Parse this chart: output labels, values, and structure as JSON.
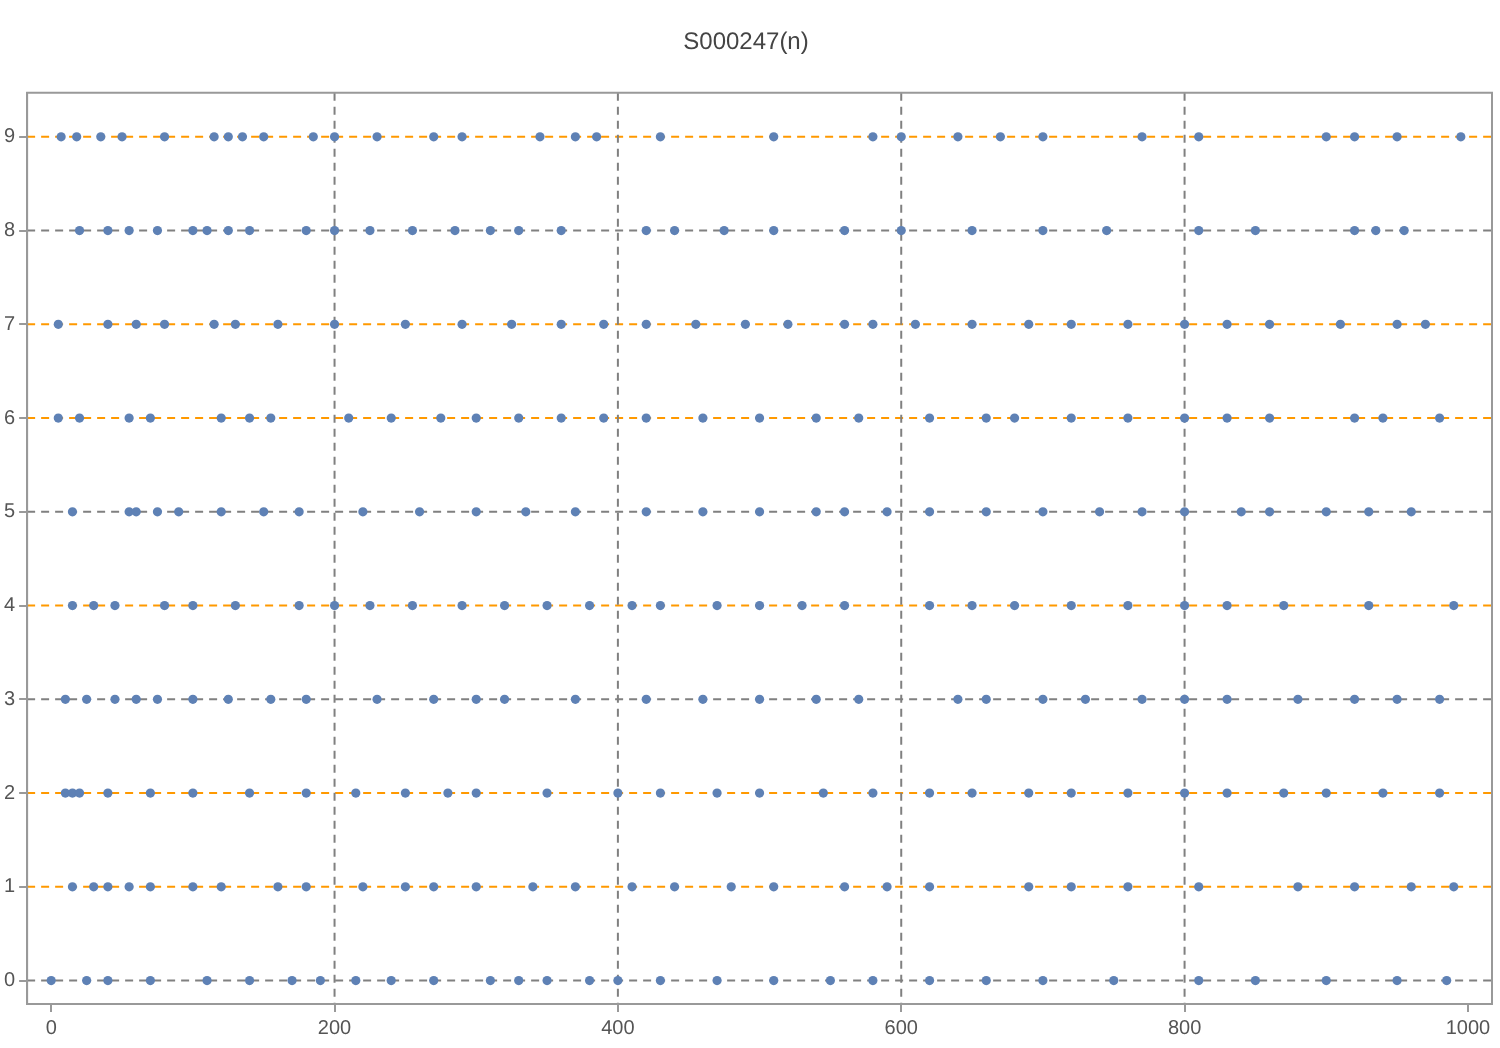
{
  "chart_data": {
    "type": "scatter",
    "title": "S000247(n)",
    "marker": "circle",
    "legend": false,
    "grid": false,
    "xlim": [
      -17,
      1017
    ],
    "ylim": [
      -0.25,
      9.47
    ],
    "xticks": [
      0,
      200,
      400,
      600,
      800,
      1000
    ],
    "yticks": [
      0,
      1,
      2,
      3,
      4,
      5,
      6,
      7,
      8,
      9
    ],
    "series": [
      {
        "color": "#5e81b5",
        "x": [
          7,
          18,
          35,
          50,
          80,
          115,
          125,
          135,
          150,
          185,
          200,
          230,
          270,
          290,
          345,
          370,
          385,
          430,
          510,
          580,
          600,
          640,
          670,
          700,
          770,
          810,
          900,
          920,
          950,
          995
        ],
        "values": [
          9,
          9,
          9,
          9,
          9,
          9,
          9,
          9,
          9,
          9,
          9,
          9,
          9,
          9,
          9,
          9,
          9,
          9,
          9,
          9,
          9,
          9,
          9,
          9,
          9,
          9,
          9,
          9,
          9,
          9
        ]
      },
      {
        "color": "#5e81b5",
        "x": [
          20,
          40,
          55,
          75,
          100,
          110,
          125,
          140,
          180,
          200,
          225,
          255,
          285,
          310,
          330,
          360,
          420,
          440,
          475,
          510,
          560,
          600,
          650,
          700,
          745,
          810,
          850,
          920,
          935,
          955
        ],
        "values": [
          8,
          8,
          8,
          8,
          8,
          8,
          8,
          8,
          8,
          8,
          8,
          8,
          8,
          8,
          8,
          8,
          8,
          8,
          8,
          8,
          8,
          8,
          8,
          8,
          8,
          8,
          8,
          8,
          8,
          8
        ]
      },
      {
        "color": "#5e81b5",
        "x": [
          5,
          40,
          60,
          80,
          115,
          130,
          160,
          200,
          250,
          290,
          325,
          360,
          390,
          420,
          455,
          490,
          520,
          560,
          580,
          610,
          650,
          690,
          720,
          760,
          800,
          830,
          860,
          910,
          950,
          970
        ],
        "values": [
          7,
          7,
          7,
          7,
          7,
          7,
          7,
          7,
          7,
          7,
          7,
          7,
          7,
          7,
          7,
          7,
          7,
          7,
          7,
          7,
          7,
          7,
          7,
          7,
          7,
          7,
          7,
          7,
          7,
          7
        ]
      },
      {
        "color": "#5e81b5",
        "x": [
          5,
          20,
          55,
          70,
          120,
          140,
          155,
          210,
          240,
          275,
          300,
          330,
          360,
          390,
          420,
          460,
          500,
          540,
          570,
          620,
          660,
          680,
          720,
          760,
          800,
          830,
          860,
          920,
          940,
          980
        ],
        "values": [
          6,
          6,
          6,
          6,
          6,
          6,
          6,
          6,
          6,
          6,
          6,
          6,
          6,
          6,
          6,
          6,
          6,
          6,
          6,
          6,
          6,
          6,
          6,
          6,
          6,
          6,
          6,
          6,
          6,
          6
        ]
      },
      {
        "color": "#5e81b5",
        "x": [
          15,
          55,
          60,
          75,
          90,
          120,
          150,
          175,
          220,
          260,
          300,
          335,
          370,
          420,
          460,
          500,
          540,
          560,
          590,
          620,
          660,
          700,
          740,
          770,
          800,
          840,
          860,
          900,
          930,
          960
        ],
        "values": [
          5,
          5,
          5,
          5,
          5,
          5,
          5,
          5,
          5,
          5,
          5,
          5,
          5,
          5,
          5,
          5,
          5,
          5,
          5,
          5,
          5,
          5,
          5,
          5,
          5,
          5,
          5,
          5,
          5,
          5
        ]
      },
      {
        "color": "#5e81b5",
        "x": [
          15,
          30,
          45,
          80,
          100,
          130,
          175,
          200,
          225,
          255,
          290,
          320,
          350,
          380,
          410,
          430,
          470,
          500,
          530,
          560,
          620,
          650,
          680,
          720,
          760,
          800,
          830,
          870,
          930,
          990
        ],
        "values": [
          4,
          4,
          4,
          4,
          4,
          4,
          4,
          4,
          4,
          4,
          4,
          4,
          4,
          4,
          4,
          4,
          4,
          4,
          4,
          4,
          4,
          4,
          4,
          4,
          4,
          4,
          4,
          4,
          4,
          4
        ]
      },
      {
        "color": "#5e81b5",
        "x": [
          10,
          25,
          45,
          60,
          75,
          100,
          125,
          155,
          180,
          230,
          270,
          300,
          320,
          370,
          420,
          460,
          500,
          540,
          570,
          640,
          660,
          700,
          730,
          770,
          800,
          830,
          880,
          920,
          950,
          980
        ],
        "values": [
          3,
          3,
          3,
          3,
          3,
          3,
          3,
          3,
          3,
          3,
          3,
          3,
          3,
          3,
          3,
          3,
          3,
          3,
          3,
          3,
          3,
          3,
          3,
          3,
          3,
          3,
          3,
          3,
          3,
          3
        ]
      },
      {
        "color": "#5e81b5",
        "x": [
          10,
          15,
          20,
          40,
          70,
          100,
          140,
          180,
          215,
          250,
          280,
          300,
          350,
          400,
          430,
          470,
          500,
          545,
          580,
          620,
          650,
          690,
          720,
          760,
          800,
          830,
          870,
          900,
          940,
          980
        ],
        "values": [
          2,
          2,
          2,
          2,
          2,
          2,
          2,
          2,
          2,
          2,
          2,
          2,
          2,
          2,
          2,
          2,
          2,
          2,
          2,
          2,
          2,
          2,
          2,
          2,
          2,
          2,
          2,
          2,
          2,
          2
        ]
      },
      {
        "color": "#5e81b5",
        "x": [
          15,
          30,
          40,
          55,
          70,
          100,
          120,
          160,
          180,
          220,
          250,
          270,
          300,
          340,
          370,
          410,
          440,
          480,
          510,
          560,
          590,
          620,
          690,
          720,
          760,
          810,
          880,
          920,
          960,
          990
        ],
        "values": [
          1,
          1,
          1,
          1,
          1,
          1,
          1,
          1,
          1,
          1,
          1,
          1,
          1,
          1,
          1,
          1,
          1,
          1,
          1,
          1,
          1,
          1,
          1,
          1,
          1,
          1,
          1,
          1,
          1,
          1
        ]
      },
      {
        "color": "#5e81b5",
        "x": [
          0,
          25,
          40,
          70,
          110,
          140,
          170,
          190,
          215,
          240,
          270,
          310,
          330,
          350,
          380,
          400,
          430,
          470,
          510,
          550,
          580,
          620,
          660,
          700,
          750,
          810,
          850,
          900,
          950,
          985
        ],
        "values": [
          0,
          0,
          0,
          0,
          0,
          0,
          0,
          0,
          0,
          0,
          0,
          0,
          0,
          0,
          0,
          0,
          0,
          0,
          0,
          0,
          0,
          0,
          0,
          0,
          0,
          0,
          0,
          0,
          0,
          0
        ]
      }
    ],
    "ref_lines": [
      {
        "axis": "y",
        "value": 9,
        "color": "#ff9900",
        "line_style": "dashed"
      },
      {
        "axis": "y",
        "value": 8,
        "color": "#808080",
        "line_style": "dashed"
      },
      {
        "axis": "y",
        "value": 7,
        "color": "#ff9900",
        "line_style": "dashed"
      },
      {
        "axis": "y",
        "value": 6,
        "color": "#ff9900",
        "line_style": "dashed"
      },
      {
        "axis": "y",
        "value": 5,
        "color": "#808080",
        "line_style": "dashed"
      },
      {
        "axis": "y",
        "value": 4,
        "color": "#ff9900",
        "line_style": "dashed"
      },
      {
        "axis": "y",
        "value": 3,
        "color": "#808080",
        "line_style": "dashed"
      },
      {
        "axis": "y",
        "value": 2,
        "color": "#ff9900",
        "line_style": "dashed"
      },
      {
        "axis": "y",
        "value": 1,
        "color": "#ff9900",
        "line_style": "dashed"
      },
      {
        "axis": "y",
        "value": 0,
        "color": "#808080",
        "line_style": "dashed"
      },
      {
        "axis": "x",
        "value": 200,
        "color": "#808080",
        "line_style": "dashed"
      },
      {
        "axis": "x",
        "value": 400,
        "color": "#808080",
        "line_style": "dashed"
      },
      {
        "axis": "x",
        "value": 600,
        "color": "#808080",
        "line_style": "dashed"
      },
      {
        "axis": "x",
        "value": 800,
        "color": "#808080",
        "line_style": "dashed"
      }
    ]
  }
}
